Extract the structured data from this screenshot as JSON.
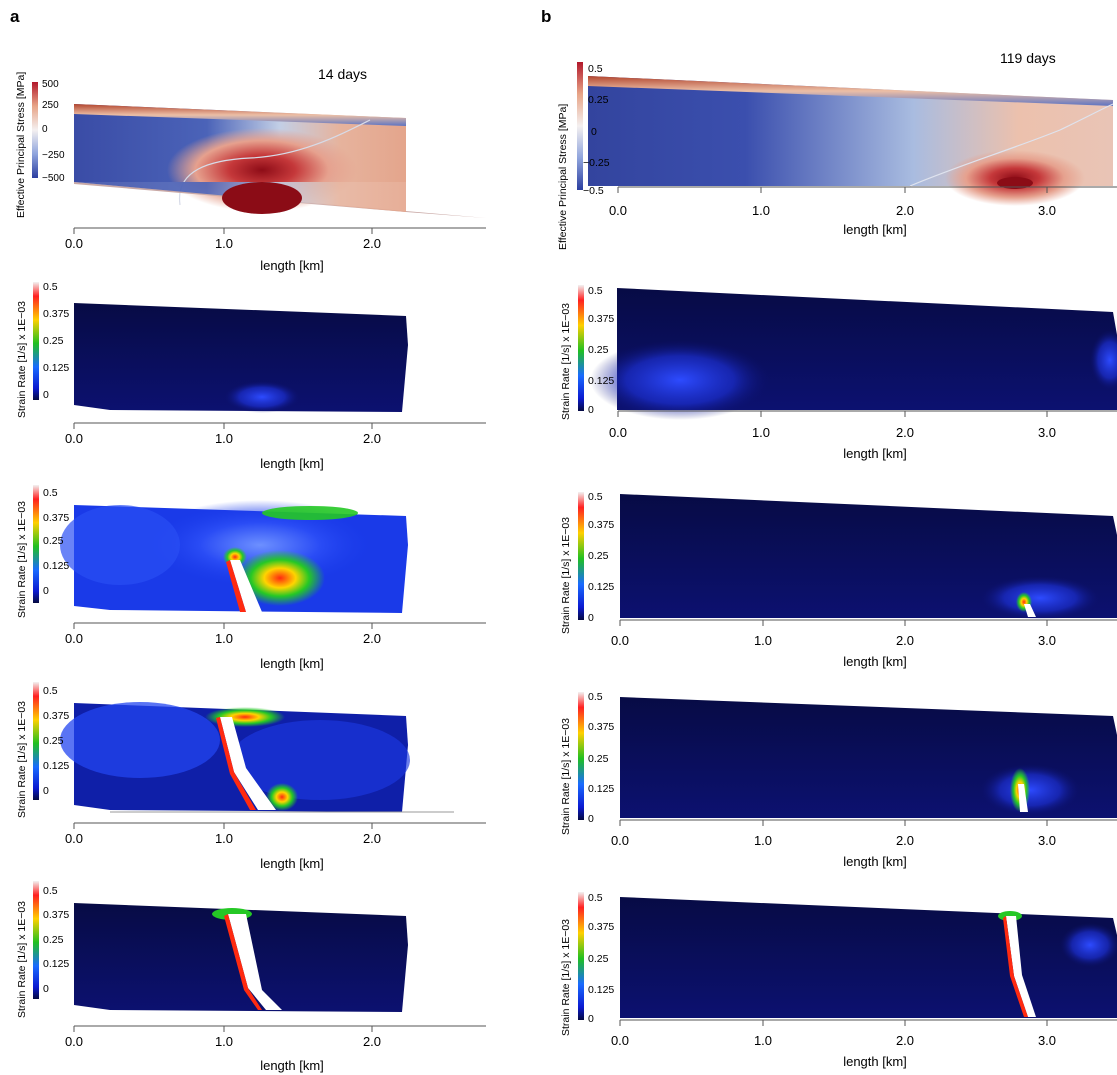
{
  "columns": [
    {
      "letter": "a",
      "time_label": "14 days",
      "panels": [
        {
          "kind": "stress",
          "cbar_label": "Effective Principal Stress [MPa]",
          "cbar_ticks": [
            "500",
            "250",
            "0",
            "−250",
            "−500"
          ],
          "x_ticks": [
            "0.0",
            "1.0",
            "2.0"
          ],
          "xlabel": "length [km]"
        },
        {
          "kind": "strain",
          "cbar_label": "Strain Rate [1/s] x 1E−03",
          "cbar_ticks": [
            "0.5",
            "0.375",
            "0.25",
            "0.125",
            "0"
          ],
          "x_ticks": [
            "0.0",
            "1.0",
            "2.0"
          ],
          "xlabel": "length [km]"
        },
        {
          "kind": "strain",
          "cbar_label": "Strain Rate [1/s] x 1E−03",
          "cbar_ticks": [
            "0.5",
            "0.375",
            "0.25",
            "0.125",
            "0"
          ],
          "x_ticks": [
            "0.0",
            "1.0",
            "2.0"
          ],
          "xlabel": "length [km]"
        },
        {
          "kind": "strain",
          "cbar_label": "Strain Rate [1/s] x 1E−03",
          "cbar_ticks": [
            "0.5",
            "0.375",
            "0.25",
            "0.125",
            "0"
          ],
          "x_ticks": [
            "0.0",
            "1.0",
            "2.0"
          ],
          "xlabel": "length [km]"
        },
        {
          "kind": "strain",
          "cbar_label": "Strain Rate [1/s] x 1E−03",
          "cbar_ticks": [
            "0.5",
            "0.375",
            "0.25",
            "0.125",
            "0"
          ],
          "x_ticks": [
            "0.0",
            "1.0",
            "2.0"
          ],
          "xlabel": "length [km]"
        }
      ]
    },
    {
      "letter": "b",
      "time_label": "119 days",
      "panels": [
        {
          "kind": "stress",
          "cbar_label": "Effective Principal Stress [MPa]",
          "cbar_ticks": [
            "0.5",
            "0.25",
            "0",
            "−0.25",
            "−0.5"
          ],
          "x_ticks": [
            "0.0",
            "1.0",
            "2.0",
            "3.0"
          ],
          "xlabel": "length [km]"
        },
        {
          "kind": "strain",
          "cbar_label": "Strain Rate [1/s] x 1E−03",
          "cbar_ticks": [
            "0.5",
            "0.375",
            "0.25",
            "0.125",
            "0"
          ],
          "x_ticks": [
            "0.0",
            "1.0",
            "2.0",
            "3.0"
          ],
          "xlabel": "length [km]"
        },
        {
          "kind": "strain",
          "cbar_label": "Strain Rate [1/s] x 1E−03",
          "cbar_ticks": [
            "0.5",
            "0.375",
            "0.25",
            "0.125",
            "0"
          ],
          "x_ticks": [
            "0.0",
            "1.0",
            "2.0",
            "3.0"
          ],
          "xlabel": "length [km]"
        },
        {
          "kind": "strain",
          "cbar_label": "Strain Rate [1/s] x 1E−03",
          "cbar_ticks": [
            "0.5",
            "0.375",
            "0.25",
            "0.125",
            "0"
          ],
          "x_ticks": [
            "0.0",
            "1.0",
            "2.0",
            "3.0"
          ],
          "xlabel": "length [km]"
        },
        {
          "kind": "strain",
          "cbar_label": "Strain Rate [1/s] x 1E−03",
          "cbar_ticks": [
            "0.5",
            "0.375",
            "0.25",
            "0.125",
            "0"
          ],
          "x_ticks": [
            "0.0",
            "1.0",
            "2.0",
            "3.0"
          ],
          "xlabel": "length [km]"
        }
      ]
    }
  ],
  "colors": {
    "stress_low": "#3d4fa6",
    "stress_mid": "#e8e8ef",
    "stress_high": "#a01a1c",
    "strain_bg": "#0a0f5a",
    "strain_blue": "#1535f0",
    "strain_green": "#20d020",
    "strain_red": "#ff1a1a",
    "strain_white": "#ffffff"
  }
}
